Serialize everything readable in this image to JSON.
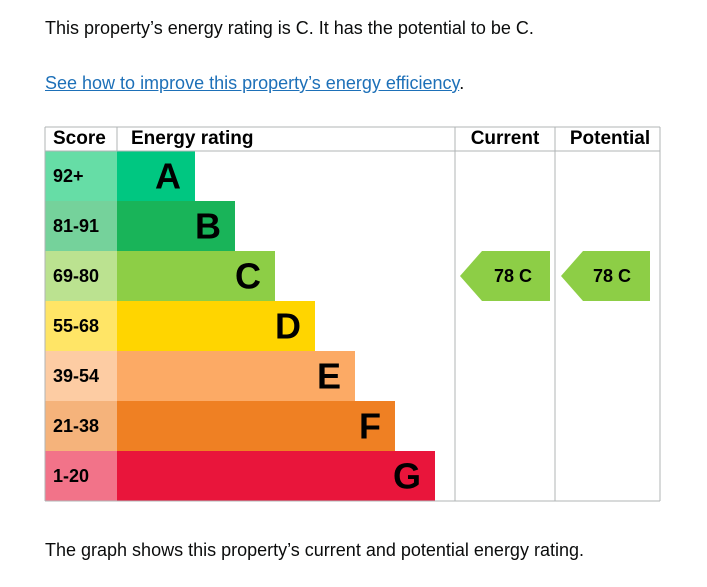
{
  "intro": "This property’s energy rating is C. It has the potential to be C.",
  "link": {
    "text": "See how to improve this property’s energy efficiency",
    "trailing": "."
  },
  "table": {
    "headers": [
      "Score",
      "Energy rating",
      "Current",
      "Potential"
    ],
    "bands": [
      {
        "score": "92+",
        "letter": "A"
      },
      {
        "score": "81-91",
        "letter": "B"
      },
      {
        "score": "69-80",
        "letter": "C"
      },
      {
        "score": "55-68",
        "letter": "D"
      },
      {
        "score": "39-54",
        "letter": "E"
      },
      {
        "score": "21-38",
        "letter": "F"
      },
      {
        "score": "1-20",
        "letter": "G"
      }
    ],
    "current": "78 C",
    "potential": "78 C"
  },
  "caption": "The graph shows this property’s current and potential energy rating."
}
